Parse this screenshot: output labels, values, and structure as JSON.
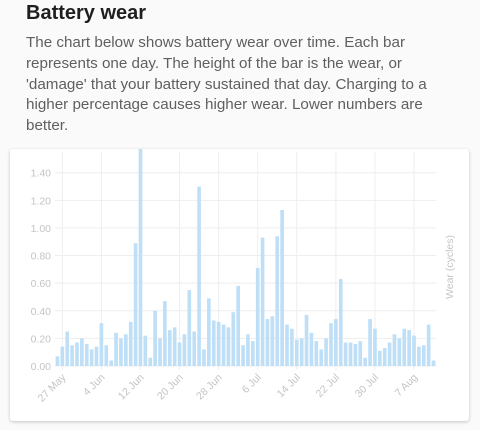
{
  "header": {
    "title": "Battery wear",
    "description": "The chart below shows battery wear over time. Each bar represents one day. The height of the bar is the wear, or 'damage' that your battery sustained that day. Charging to a higher percentage causes higher wear. Lower numbers are better."
  },
  "colors": {
    "bar": "#bfdff7",
    "grid": "#eeeeee",
    "axis_text": "#c4c4c4"
  },
  "chart_data": {
    "type": "bar",
    "ylabel": "Wear (cycles)",
    "xlabel": "",
    "ylim": [
      0,
      1.55
    ],
    "yticks": [
      "0.00",
      "0.20",
      "0.40",
      "0.60",
      "0.80",
      "1.00",
      "1.20",
      "1.40"
    ],
    "x_tick_labels": [
      "27 May",
      "4 Jun",
      "12 Jun",
      "20 Jun",
      "28 Jun",
      "6 Jul",
      "14 Jul",
      "22 Jul",
      "30 Jul",
      "7 Aug"
    ],
    "x_tick_every_days": 8,
    "grid": true,
    "values": [
      0.07,
      0.14,
      0.25,
      0.15,
      0.17,
      0.2,
      0.16,
      0.12,
      0.14,
      0.31,
      0.15,
      0.04,
      0.24,
      0.2,
      0.23,
      0.32,
      0.89,
      1.58,
      0.22,
      0.06,
      0.4,
      0.2,
      0.47,
      0.26,
      0.28,
      0.17,
      0.23,
      0.55,
      0.25,
      1.3,
      0.12,
      0.49,
      0.33,
      0.32,
      0.3,
      0.28,
      0.39,
      0.58,
      0.15,
      0.23,
      0.18,
      0.71,
      0.93,
      0.34,
      0.36,
      0.94,
      1.13,
      0.3,
      0.27,
      0.19,
      0.2,
      0.37,
      0.24,
      0.18,
      0.12,
      0.2,
      0.31,
      0.34,
      0.63,
      0.17,
      0.17,
      0.16,
      0.18,
      0.06,
      0.34,
      0.27,
      0.11,
      0.13,
      0.17,
      0.23,
      0.2,
      0.27,
      0.26,
      0.22,
      0.14,
      0.15,
      0.3,
      0.04
    ]
  }
}
